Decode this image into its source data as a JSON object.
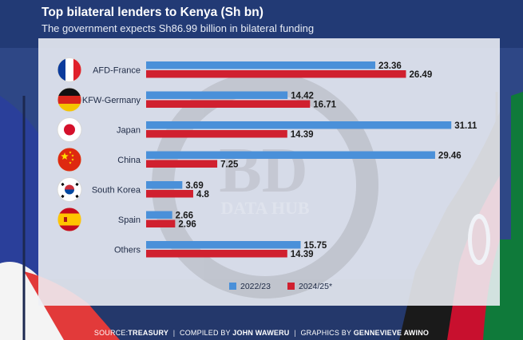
{
  "header": {
    "title": "Top bilateral lenders to Kenya (Sh bn)",
    "subtitle": "The government expects Sh86.99 billion in bilateral funding"
  },
  "watermark": {
    "logo": "BD",
    "text": "DATA HUB"
  },
  "footer": {
    "source_label": "SOURCE:",
    "source_value": "TREASURY",
    "compiled_label": "COMPILED BY",
    "compiled_value": "JOHN WAWERU",
    "graphics_label": "GRAPHICS BY",
    "graphics_value": "GENNEVIEVE AWINO"
  },
  "chart_data": {
    "type": "bar",
    "orientation": "horizontal",
    "categories": [
      "AFD-France",
      "KFW-Germany",
      "Japan",
      "China",
      "South Korea",
      "Spain",
      "Others"
    ],
    "flags": [
      "france-flag-icon",
      "germany-flag-icon",
      "japan-flag-icon",
      "china-flag-icon",
      "south-korea-flag-icon",
      "spain-flag-icon",
      "others"
    ],
    "series": [
      {
        "name": "2022/23",
        "color": "#4a90d9",
        "values": [
          23.36,
          14.42,
          31.11,
          29.46,
          3.69,
          2.66,
          15.75
        ],
        "labels": [
          "23.36",
          "14.42",
          "31.11",
          "29.46",
          "3.69",
          "2.66",
          "15.75"
        ]
      },
      {
        "name": "2024/25*",
        "color": "#d0202f",
        "values": [
          26.49,
          16.71,
          14.39,
          7.25,
          4.8,
          2.96,
          14.39
        ],
        "labels": [
          "26.49",
          "16.71",
          "14.39",
          "7.25",
          "4.8",
          "2.96",
          "14.39"
        ]
      }
    ],
    "xlim": [
      0,
      35
    ],
    "legend_position": "bottom-right",
    "grid": false
  }
}
